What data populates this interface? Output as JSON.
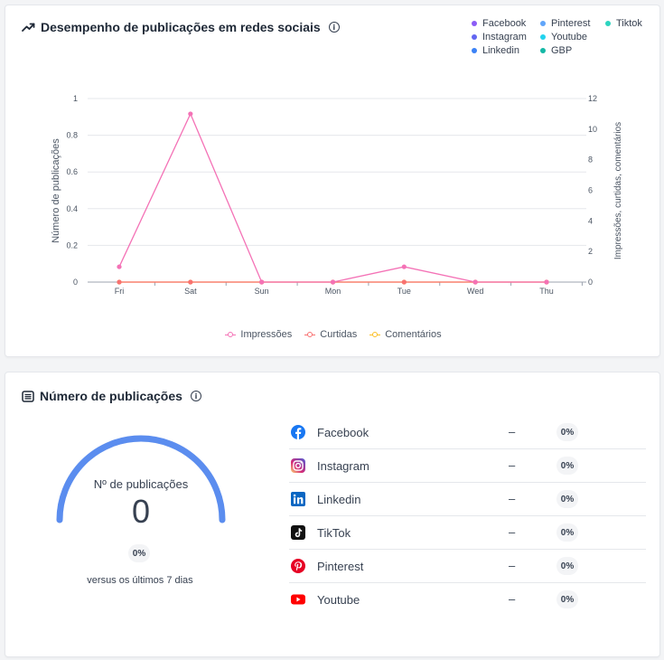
{
  "performance_card": {
    "title": "Desempenho de publicações em redes sociais",
    "info_icon": "info-icon",
    "title_icon": "trending-up-icon",
    "network_legend": [
      {
        "label": "Facebook",
        "color": "#8b5cf6"
      },
      {
        "label": "Pinterest",
        "color": "#60a5fa"
      },
      {
        "label": "Tiktok",
        "color": "#2dd4bf"
      },
      {
        "label": "Instagram",
        "color": "#6366f1"
      },
      {
        "label": "Youtube",
        "color": "#22d3ee"
      },
      {
        "label": "",
        "color": ""
      },
      {
        "label": "Linkedin",
        "color": "#3b82f6"
      },
      {
        "label": "GBP",
        "color": "#14b8a6"
      },
      {
        "label": "",
        "color": ""
      }
    ],
    "metric_legend": [
      {
        "label": "Impressões",
        "color": "#f472b6"
      },
      {
        "label": "Curtidas",
        "color": "#f87171"
      },
      {
        "label": "Comentários",
        "color": "#fbbf24"
      }
    ]
  },
  "chart_data": {
    "type": "line",
    "categories": [
      "Fri",
      "Sat",
      "Sun",
      "Mon",
      "Tue",
      "Wed",
      "Thu"
    ],
    "ylabel": "Número de publicações",
    "y2label": "Impressões, curtidas, comentários",
    "ylim": [
      0,
      1
    ],
    "y_ticks": [
      "0",
      "0.2",
      "0.4",
      "0.6",
      "0.8",
      "1"
    ],
    "y2lim": [
      0,
      12
    ],
    "y2_ticks": [
      "0",
      "2",
      "4",
      "6",
      "8",
      "10",
      "12"
    ],
    "grid": true,
    "series": [
      {
        "name": "Impressões",
        "axis": "right",
        "color": "#f472b6",
        "values": [
          1,
          11,
          0,
          0,
          1,
          0,
          0
        ]
      },
      {
        "name": "Curtidas",
        "axis": "right",
        "color": "#f87171",
        "values": [
          0,
          0,
          0,
          0,
          0,
          0,
          0
        ]
      },
      {
        "name": "Comentários",
        "axis": "right",
        "color": "#fbbf24",
        "values": [
          0,
          0,
          0,
          0,
          0,
          0,
          0
        ]
      }
    ]
  },
  "publications_card": {
    "title": "Número de publicações",
    "title_icon": "list-icon",
    "info_icon": "info-icon",
    "gauge": {
      "label": "Nº de publicações",
      "value": "0",
      "fill_fraction": 1.0,
      "color": "#5b8def",
      "change": "0%",
      "comparison": "versus os últimos 7 dias"
    },
    "networks": [
      {
        "name": "Facebook",
        "icon": "facebook-icon",
        "count": "–",
        "percent": "0%"
      },
      {
        "name": "Instagram",
        "icon": "instagram-icon",
        "count": "–",
        "percent": "0%"
      },
      {
        "name": "Linkedin",
        "icon": "linkedin-icon",
        "count": "–",
        "percent": "0%"
      },
      {
        "name": "TikTok",
        "icon": "tiktok-icon",
        "count": "–",
        "percent": "0%"
      },
      {
        "name": "Pinterest",
        "icon": "pinterest-icon",
        "count": "–",
        "percent": "0%"
      },
      {
        "name": "Youtube",
        "icon": "youtube-icon",
        "count": "–",
        "percent": "0%"
      }
    ]
  }
}
